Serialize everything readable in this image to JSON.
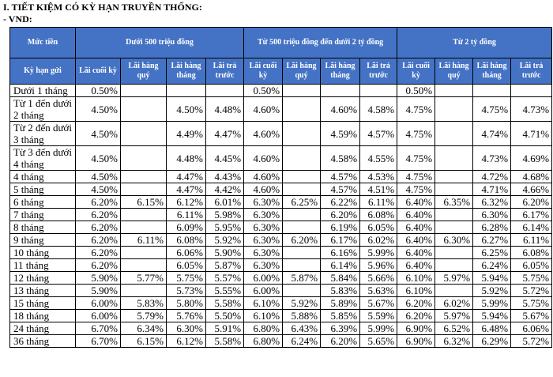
{
  "header": {
    "title": "I. TIẾT KIỆM CÓ KỲ HẠN TRUYỀN THỐNG:",
    "subtitle": "- VND:"
  },
  "table": {
    "amount_label": "Mức tiền",
    "groups": [
      "Dưới 500 triệu đồng",
      "Từ 500 triệu đồng đến dưới 2 tỷ đồng",
      "Từ 2 tỷ đồng"
    ],
    "term_label": "Kỳ hạn gửi",
    "columns": [
      "Lãi cuối kỳ",
      "Lãi hàng quý",
      "Lãi hàng tháng",
      "Lãi trả trước",
      "Lãi cuối kỳ",
      "Lãi hàng quý",
      "Lãi hàng tháng",
      "Lãi trả trước",
      "Lãi cuối kỳ",
      "Lãi hàng quý",
      "Lãi hàng tháng",
      "Lãi trả trước"
    ],
    "rows": [
      [
        "Dưới 1 tháng",
        "0.50%",
        null,
        null,
        null,
        "0.50%",
        null,
        null,
        null,
        "0.50%",
        null,
        null,
        null
      ],
      [
        "Từ 1 đến dưới 2 tháng",
        "4.50%",
        null,
        "4.50%",
        "4.48%",
        "4.60%",
        null,
        "4.60%",
        "4.58%",
        "4.75%",
        null,
        "4.75%",
        "4.73%"
      ],
      [
        "Từ 2 đến dưới 3 tháng",
        "4.50%",
        null,
        "4.49%",
        "4.47%",
        "4.60%",
        null,
        "4.59%",
        "4.57%",
        "4.75%",
        null,
        "4.74%",
        "4.71%"
      ],
      [
        "Từ 3 đến dưới 4 tháng",
        "4.50%",
        null,
        "4.48%",
        "4.45%",
        "4.60%",
        null,
        "4.58%",
        "4.55%",
        "4.75%",
        null,
        "4.73%",
        "4.69%"
      ],
      [
        "4 tháng",
        "4.50%",
        null,
        "4.47%",
        "4.43%",
        "4.60%",
        null,
        "4.57%",
        "4.53%",
        "4.75%",
        null,
        "4.72%",
        "4.68%"
      ],
      [
        "5 tháng",
        "4.50%",
        null,
        "4.47%",
        "4.42%",
        "4.60%",
        null,
        "4.57%",
        "4.51%",
        "4.75%",
        null,
        "4.71%",
        "4.66%"
      ],
      [
        "6 tháng",
        "6.20%",
        "6.15%",
        "6.12%",
        "6.01%",
        "6.30%",
        "6.25%",
        "6.22%",
        "6.11%",
        "6.40%",
        "6.35%",
        "6.32%",
        "6.20%"
      ],
      [
        "7 tháng",
        "6.20%",
        null,
        "6.11%",
        "5.98%",
        "6.30%",
        null,
        "6.20%",
        "6.08%",
        "6.40%",
        null,
        "6.30%",
        "6.17%"
      ],
      [
        "8 tháng",
        "6.20%",
        null,
        "6.09%",
        "5.95%",
        "6.30%",
        null,
        "6.19%",
        "6.05%",
        "6.40%",
        null,
        "6.28%",
        "6.14%"
      ],
      [
        "9 tháng",
        "6.20%",
        "6.11%",
        "6.08%",
        "5.92%",
        "6.30%",
        "6.20%",
        "6.17%",
        "6.02%",
        "6.40%",
        "6.30%",
        "6.27%",
        "6.11%"
      ],
      [
        "10 tháng",
        "6.20%",
        null,
        "6.06%",
        "5.90%",
        "6.30%",
        null,
        "6.16%",
        "5.99%",
        "6.40%",
        null,
        "6.25%",
        "6.08%"
      ],
      [
        "11 tháng",
        "6.20%",
        null,
        "6.05%",
        "5.87%",
        "6.30%",
        null,
        "6.14%",
        "5.96%",
        "6.40%",
        null,
        "6.24%",
        "6.05%"
      ],
      [
        "12 tháng",
        "5.90%",
        "5.77%",
        "5.75%",
        "5.57%",
        "6.00%",
        "5.87%",
        "5.84%",
        "5.66%",
        "6.10%",
        "5.97%",
        "5.94%",
        "5.75%"
      ],
      [
        "13 tháng",
        "5.90%",
        null,
        "5.73%",
        "5.55%",
        "6.00%",
        null,
        "5.83%",
        "5.63%",
        "6.10%",
        null,
        "5.92%",
        "5.72%"
      ],
      [
        "15 tháng",
        "6.00%",
        "5.83%",
        "5.80%",
        "5.58%",
        "6.10%",
        "5.92%",
        "5.89%",
        "5.67%",
        "6.20%",
        "6.02%",
        "5.99%",
        "5.75%"
      ],
      [
        "18 tháng",
        "6.00%",
        "5.79%",
        "5.76%",
        "5.50%",
        "6.10%",
        "5.88%",
        "5.85%",
        "5.59%",
        "6.20%",
        "5.97%",
        "5.94%",
        "5.67%"
      ],
      [
        "24 tháng",
        "6.70%",
        "6.34%",
        "6.30%",
        "5.91%",
        "6.80%",
        "6.43%",
        "6.39%",
        "5.99%",
        "6.90%",
        "6.52%",
        "6.48%",
        "6.06%"
      ],
      [
        "36 tháng",
        "6.70%",
        "6.15%",
        "6.12%",
        "5.58%",
        "6.80%",
        "6.24%",
        "6.20%",
        "5.65%",
        "6.90%",
        "6.32%",
        "6.29%",
        "5.72%"
      ]
    ]
  }
}
